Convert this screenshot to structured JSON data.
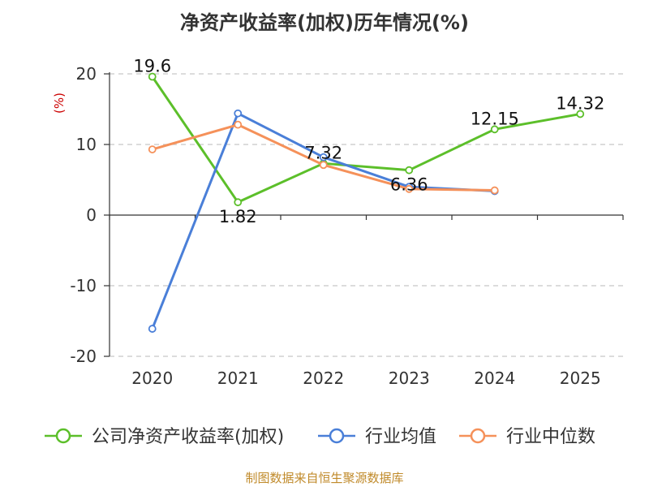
{
  "chart_data": {
    "type": "line",
    "title": "净资产收益率(加权)历年情况(%)",
    "ylabel": "(%)",
    "xlabel": "",
    "categories": [
      "2020",
      "2021",
      "2022",
      "2023",
      "2024",
      "2025"
    ],
    "ylim": [
      -20,
      20
    ],
    "yticks": [
      20,
      10,
      0,
      -10,
      -20
    ],
    "grid": true,
    "legend_position": "bottom",
    "series": [
      {
        "name": "公司净资产收益率(加权)",
        "color": "#5cbf2a",
        "values": [
          19.6,
          1.82,
          7.32,
          6.36,
          12.15,
          14.32
        ],
        "labels": [
          "19.6",
          "1.82",
          "7.32",
          "6.36",
          "12.15",
          "14.32"
        ]
      },
      {
        "name": "行业均值",
        "color": "#4a7fd8",
        "values": [
          -16.1,
          14.4,
          8.2,
          4.0,
          3.4,
          null
        ]
      },
      {
        "name": "行业中位数",
        "color": "#f5915a",
        "values": [
          9.3,
          12.8,
          7.1,
          3.7,
          3.5,
          null
        ]
      }
    ]
  },
  "footer": {
    "source": "制图数据来自恒生聚源数据库"
  }
}
